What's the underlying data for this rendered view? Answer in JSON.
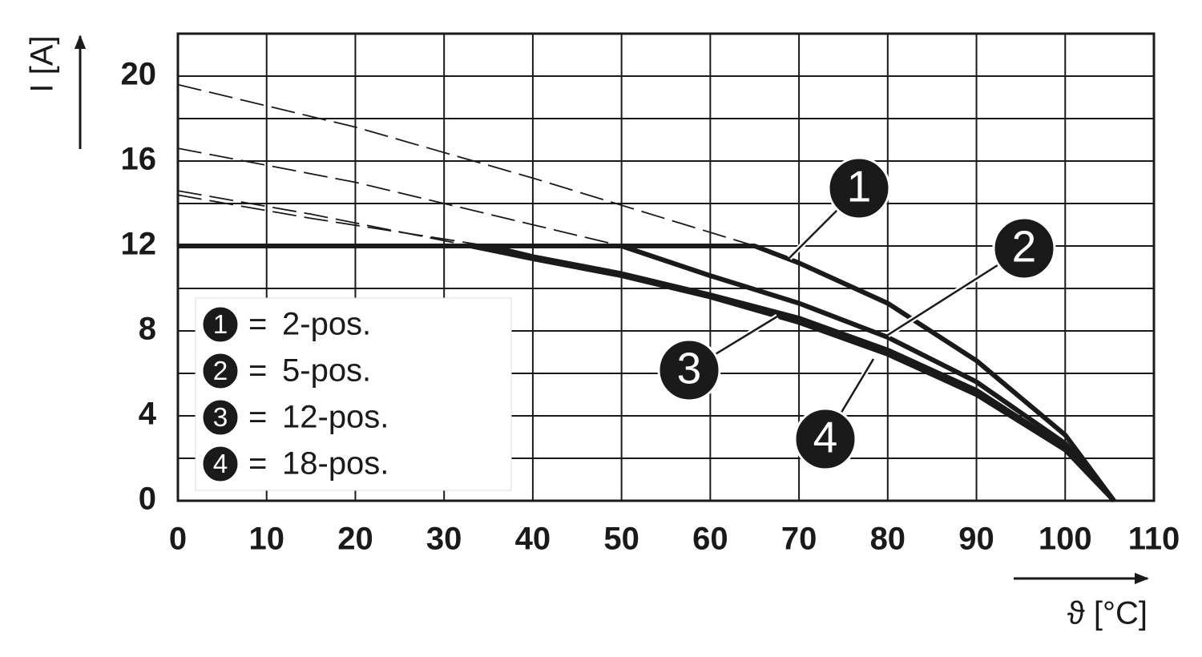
{
  "chart_data": {
    "type": "line",
    "x_label": "ϑ [°C]",
    "y_label": "I [A]",
    "xlim": [
      0,
      110
    ],
    "ylim": [
      0,
      22
    ],
    "xticks": [
      0,
      10,
      20,
      30,
      40,
      50,
      60,
      70,
      80,
      90,
      100,
      110
    ],
    "yticks": [
      0,
      4,
      8,
      12,
      16,
      20
    ],
    "ygrid": [
      0,
      2,
      4,
      6,
      8,
      10,
      12,
      14,
      16,
      18,
      20,
      22
    ],
    "grid": true,
    "color": "#1a1a1a",
    "legend_separator": "=",
    "legend": "lower left",
    "series": [
      {
        "label": "1",
        "name": "2-pos.",
        "x": [
          0,
          65,
          70,
          80,
          90,
          100,
          105.5
        ],
        "values": [
          12,
          12,
          11.2,
          9.3,
          6.6,
          3.1,
          0
        ],
        "extrapolated": {
          "x": [
            0,
            20,
            40,
            65
          ],
          "values": [
            19.6,
            17.6,
            15.2,
            12
          ]
        }
      },
      {
        "label": "2",
        "name": "5-pos.",
        "x": [
          0,
          50,
          60,
          70,
          80,
          90,
          100,
          105.5
        ],
        "values": [
          12,
          12,
          10.6,
          9.3,
          7.7,
          5.6,
          2.7,
          0
        ],
        "extrapolated": {
          "x": [
            0,
            20,
            40,
            50
          ],
          "values": [
            16.6,
            15,
            13,
            12
          ]
        }
      },
      {
        "label": "3",
        "name": "12-pos.",
        "x": [
          0,
          33,
          40,
          50,
          60,
          70,
          80,
          90,
          100,
          105.5
        ],
        "values": [
          12,
          12,
          11.4,
          10.6,
          9.6,
          8.4,
          6.9,
          5.0,
          2.4,
          0
        ],
        "extrapolated": {
          "x": [
            0,
            15,
            33
          ],
          "values": [
            14.6,
            13.5,
            12
          ]
        }
      },
      {
        "label": "4",
        "name": "18-pos.",
        "x": [
          0,
          35,
          40,
          50,
          60,
          70,
          80,
          90,
          100,
          105.5
        ],
        "values": [
          12,
          12,
          11.5,
          10.7,
          9.7,
          8.6,
          7.1,
          5.2,
          2.5,
          0
        ],
        "extrapolated": {
          "x": [
            0,
            15,
            35
          ],
          "values": [
            14.4,
            13.3,
            12
          ]
        }
      }
    ]
  }
}
